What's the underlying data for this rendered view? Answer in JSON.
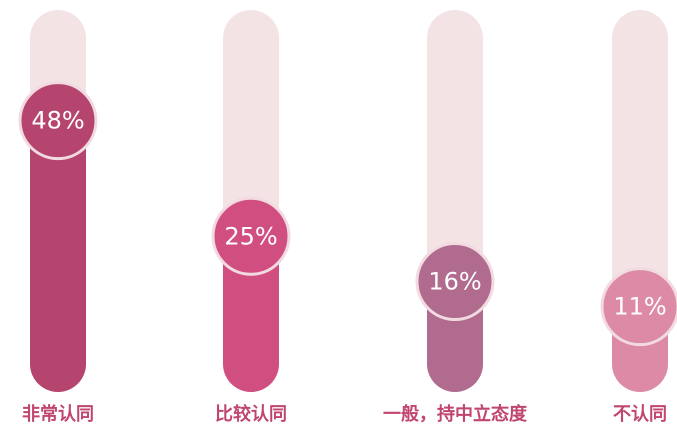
{
  "chart_data": {
    "type": "pill-bar",
    "categories": [
      "非常认同",
      "比较认同",
      "一般，持中立态度",
      "不认同"
    ],
    "values": [
      48,
      25,
      16,
      11
    ],
    "value_labels": [
      "48%",
      "25%",
      "16%",
      "11%"
    ],
    "colors": [
      "#b5446e",
      "#d14f80",
      "#b06b8f",
      "#dc8aa6"
    ],
    "ylim": [
      0,
      70
    ]
  }
}
